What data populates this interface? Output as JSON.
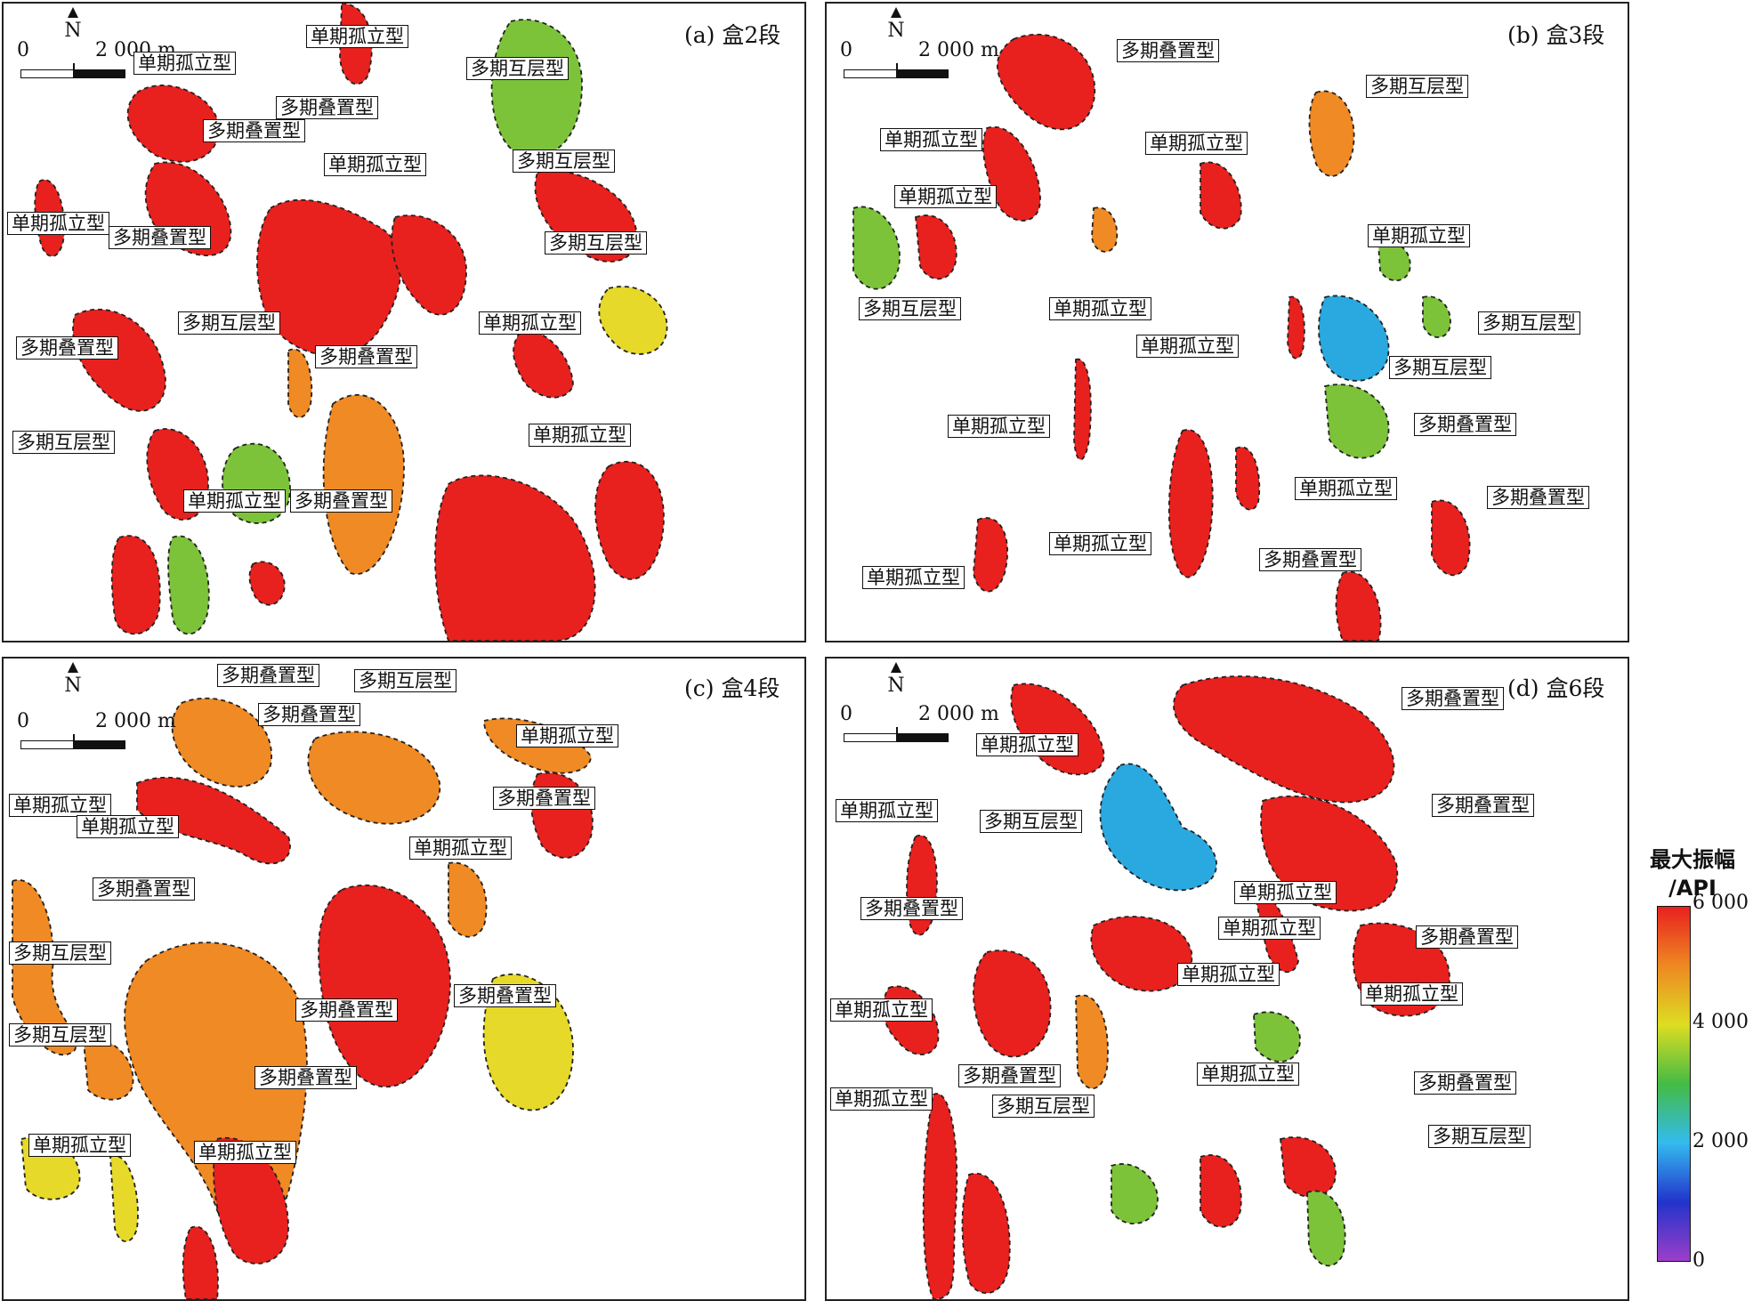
{
  "panels": [
    {
      "id": "a",
      "title": "(a) 盒2段",
      "north": "N",
      "scale": {
        "zero": "0",
        "distance": "2 000 m"
      },
      "labels": [
        "单期孤立型",
        "单期孤立型",
        "多期叠置型",
        "多期互层型",
        "多期叠置型",
        "单期孤立型",
        "多期互层型",
        "单期孤立型",
        "多期叠置型",
        "多期互层型",
        "单期孤立型",
        "多期互层型",
        "多期叠置型",
        "多期叠置型",
        "单期孤立型",
        "多期互层型",
        "单期孤立型",
        "多期叠置型"
      ]
    },
    {
      "id": "b",
      "title": "(b) 盒3段",
      "north": "N",
      "scale": {
        "zero": "0",
        "distance": "2 000 m"
      },
      "labels": [
        "多期叠置型",
        "多期互层型",
        "单期孤立型",
        "单期孤立型",
        "单期孤立型",
        "单期孤立型",
        "多期互层型",
        "单期孤立型",
        "多期互层型",
        "单期孤立型",
        "多期互层型",
        "多期叠置型",
        "单期孤立型",
        "单期孤立型",
        "多期叠置型",
        "单期孤立型",
        "多期叠置型",
        "单期孤立型"
      ]
    },
    {
      "id": "c",
      "title": "(c) 盒4段",
      "north": "N",
      "scale": {
        "zero": "0",
        "distance": "2 000 m"
      },
      "labels": [
        "多期叠置型",
        "多期互层型",
        "多期叠置型",
        "单期孤立型",
        "多期叠置型",
        "单期孤立型",
        "单期孤立型",
        "单期孤立型",
        "多期叠置型",
        "多期互层型",
        "多期叠置型",
        "多期叠置型",
        "多期互层型",
        "多期叠置型",
        "单期孤立型",
        "单期孤立型"
      ]
    },
    {
      "id": "d",
      "title": "(d) 盒6段",
      "north": "N",
      "scale": {
        "zero": "0",
        "distance": "2 000 m"
      },
      "labels": [
        "多期叠置型",
        "单期孤立型",
        "单期孤立型",
        "多期叠置型",
        "多期互层型",
        "单期孤立型",
        "多期叠置型",
        "单期孤立型",
        "多期叠置型",
        "单期孤立型",
        "单期孤立型",
        "单期孤立型",
        "单期孤立型",
        "多期叠置型",
        "单期孤立型",
        "多期叠置型",
        "多期互层型",
        "多期互层型"
      ]
    }
  ],
  "colorbar": {
    "title_line1": "最大振幅",
    "title_line2": "/API",
    "ticks": [
      "6 000",
      "4 000",
      "2 000",
      "0"
    ],
    "range": [
      0,
      6000
    ],
    "colors": [
      "#9b3fc8",
      "#2233cc",
      "#33bbee",
      "#44bb44",
      "#dddd22",
      "#ee8822",
      "#e8211e"
    ]
  },
  "colors": {
    "high": "#e8211e",
    "orange": "#f08a24",
    "yellow": "#e6d92a",
    "green": "#7cc33a",
    "blue": "#2aa9e0",
    "outline": "#222222"
  }
}
